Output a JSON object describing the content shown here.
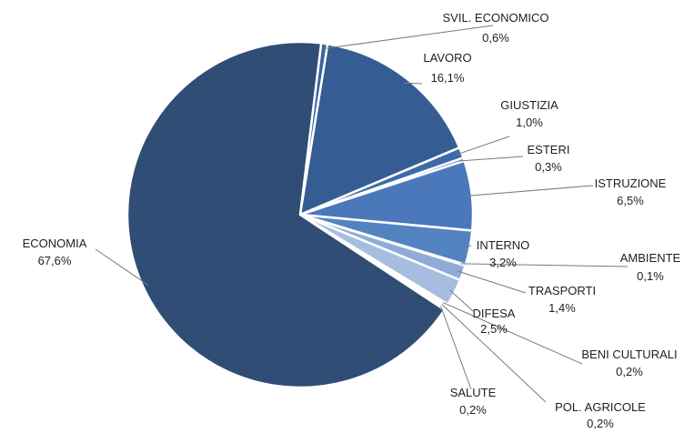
{
  "chart_data": {
    "type": "pie",
    "title": "",
    "slices": [
      {
        "name": "SVIL. ECONOMICO",
        "value": 0.6,
        "value_label": "0,6%",
        "color": "#3a64a0"
      },
      {
        "name": "LAVORO",
        "value": 16.1,
        "value_label": "16,1%",
        "color": "#355d93"
      },
      {
        "name": "GIUSTIZIA",
        "value": 1.0,
        "value_label": "1,0%",
        "color": "#3d6aa9"
      },
      {
        "name": "ESTERI",
        "value": 0.3,
        "value_label": "0,3%",
        "color": "#4673b4"
      },
      {
        "name": "ISTRUZIONE",
        "value": 6.5,
        "value_label": "6,5%",
        "color": "#4a78bb"
      },
      {
        "name": "INTERNO",
        "value": 3.2,
        "value_label": "3,2%",
        "color": "#5483c2"
      },
      {
        "name": "AMBIENTE",
        "value": 0.1,
        "value_label": "0,1%",
        "color": "#7d9ccb"
      },
      {
        "name": "TRASPORTI",
        "value": 1.4,
        "value_label": "1,4%",
        "color": "#8eacd6"
      },
      {
        "name": "DIFESA",
        "value": 2.5,
        "value_label": "2,5%",
        "color": "#a6bde0"
      },
      {
        "name": "BENI CULTURALI",
        "value": 0.2,
        "value_label": "0,2%",
        "color": "#c5d4ea"
      },
      {
        "name": "POL. AGRICOLE",
        "value": 0.2,
        "value_label": "0,2%",
        "color": "#dde6f3"
      },
      {
        "name": "SALUTE",
        "value": 0.2,
        "value_label": "0,2%",
        "color": "#edf2f9"
      },
      {
        "name": "ECONOMIA",
        "value": 67.6,
        "value_label": "67,6%",
        "color": "#2f4d75"
      }
    ]
  }
}
